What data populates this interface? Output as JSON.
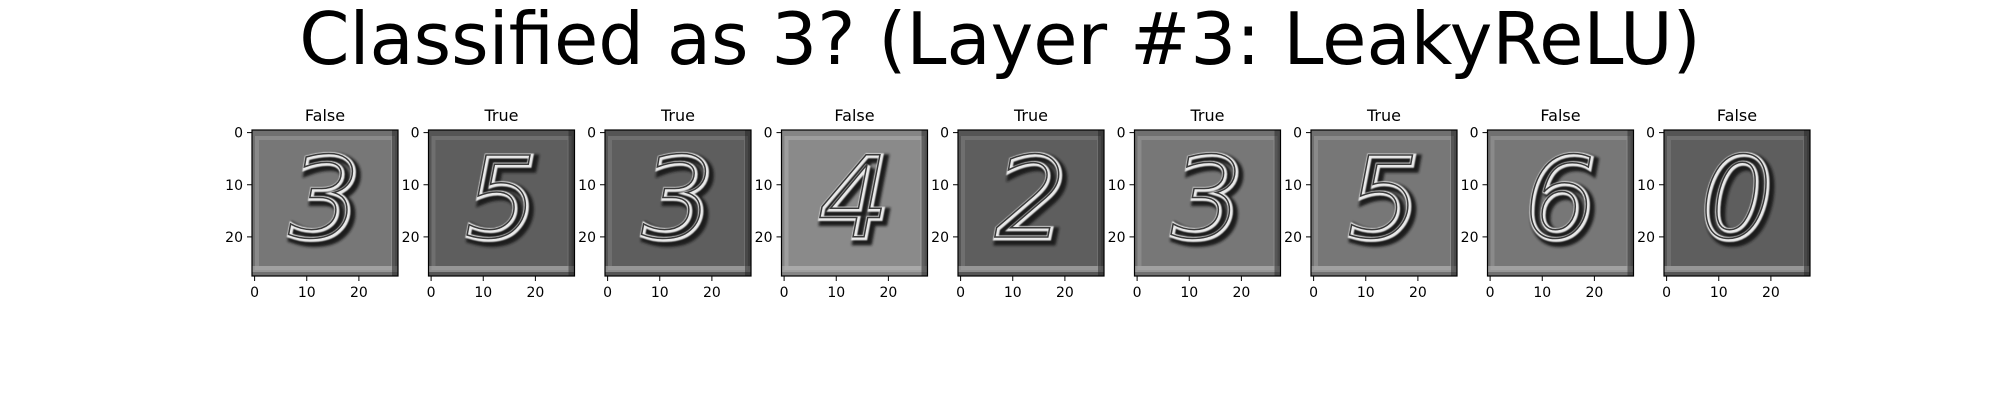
{
  "figure": {
    "suptitle": "Classified as 3? (Layer #3: LeakyReLU)"
  },
  "chart_data": {
    "type": "image-grid",
    "title": "Classified as 3? (Layer #3: LeakyReLU)",
    "image_size": [
      28,
      28
    ],
    "x_ticks": [
      "0",
      "10",
      "20"
    ],
    "y_ticks": [
      "0",
      "10",
      "20"
    ],
    "xlim": [
      -0.5,
      27.5
    ],
    "ylim": [
      27.5,
      -0.5
    ],
    "colormap": "gray",
    "panels": [
      {
        "title": "False",
        "digit": "3",
        "tone": "mid"
      },
      {
        "title": "True",
        "digit": "5",
        "tone": "dark"
      },
      {
        "title": "True",
        "digit": "3",
        "tone": "dark"
      },
      {
        "title": "False",
        "digit": "4",
        "tone": "light"
      },
      {
        "title": "True",
        "digit": "2",
        "tone": "dark"
      },
      {
        "title": "True",
        "digit": "3",
        "tone": "mid"
      },
      {
        "title": "True",
        "digit": "5",
        "tone": "mid"
      },
      {
        "title": "False",
        "digit": "6",
        "tone": "mid"
      },
      {
        "title": "False",
        "digit": "0",
        "tone": "dark"
      }
    ]
  }
}
